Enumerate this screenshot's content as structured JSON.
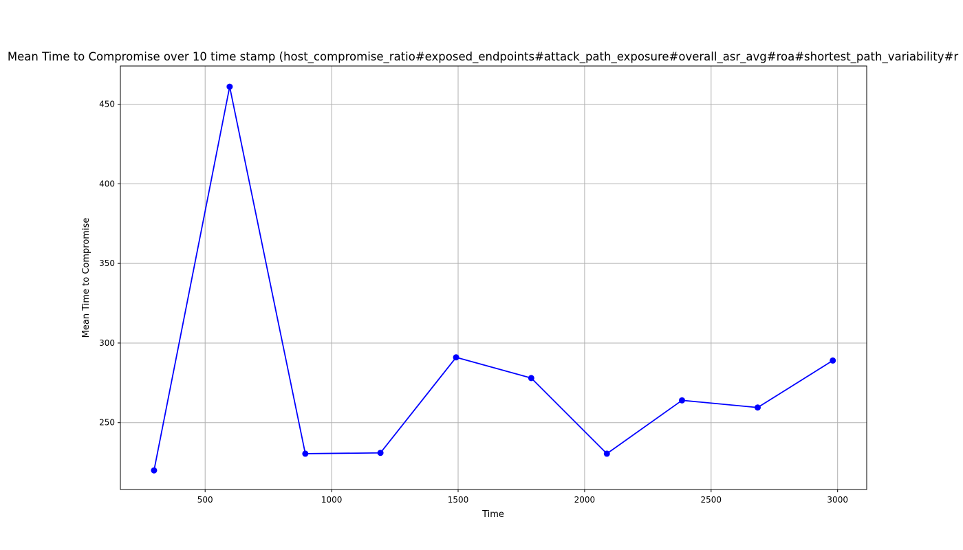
{
  "chart_data": {
    "type": "line",
    "title": "Mean Time to Compromise over 10 time stamp (host_compromise_ratio#exposed_endpoints#attack_path_exposure#overall_asr_avg#roa#shortest_path_variability#r",
    "xlabel": "Time",
    "ylabel": "Mean Time to Compromise",
    "xlim": [
      165,
      3115
    ],
    "ylim": [
      208,
      474
    ],
    "xticks": [
      500,
      1000,
      1500,
      2000,
      2500,
      3000
    ],
    "yticks": [
      250,
      300,
      350,
      400,
      450
    ],
    "grid": true,
    "series": [
      {
        "color": "#0000ff",
        "marker": "circle",
        "x": [
          298,
          597,
          896,
          1193,
          1492,
          1789,
          2088,
          2385,
          2684,
          2981
        ],
        "y": [
          220,
          461,
          230.5,
          231,
          291,
          278,
          230.5,
          264,
          259.5,
          289
        ]
      }
    ]
  }
}
